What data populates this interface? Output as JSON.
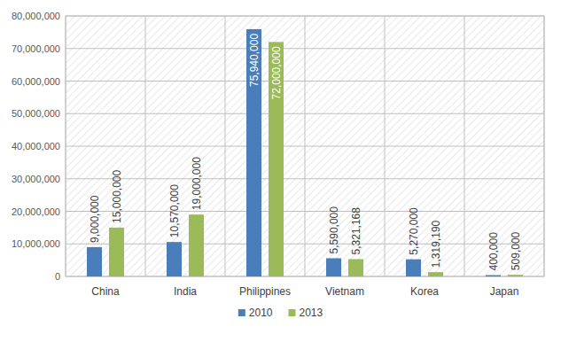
{
  "chart_data": {
    "type": "bar",
    "categories": [
      "China",
      "India",
      "Philippines",
      "Vietnam",
      "Korea",
      "Japan"
    ],
    "series": [
      {
        "name": "2010",
        "color": "#4a7ebb",
        "values": [
          9000000,
          10570000,
          75940000,
          5590000,
          5270000,
          400000
        ],
        "value_labels": [
          "9,000,000",
          "10,570,000",
          "75,940,000",
          "5,590,000",
          "5,270,000",
          "400,000"
        ]
      },
      {
        "name": "2013",
        "color": "#9bbb59",
        "values": [
          15000000,
          19000000,
          72000000,
          5321168,
          1319190,
          509000
        ],
        "value_labels": [
          "15,000,000",
          "19,000,000",
          "72,000,000",
          "5,321,168",
          "1,319,190",
          "509,000"
        ]
      }
    ],
    "ylim": [
      0,
      80000000
    ],
    "yticks": [
      0,
      {
        "value": 10000000,
        "label": "10,000,000"
      },
      {
        "value": 20000000,
        "label": "20,000,000"
      },
      {
        "value": 30000000,
        "label": "30,000,000"
      },
      {
        "value": 40000000,
        "label": "40,000,000"
      },
      {
        "value": 50000000,
        "label": "50,000,000"
      },
      {
        "value": 60000000,
        "label": "60,000,000"
      },
      {
        "value": 70000000,
        "label": "70,000,000"
      },
      {
        "value": 80000000,
        "label": "80,000,000"
      }
    ],
    "grid": true,
    "legend": "bottom",
    "data_labels": true
  }
}
